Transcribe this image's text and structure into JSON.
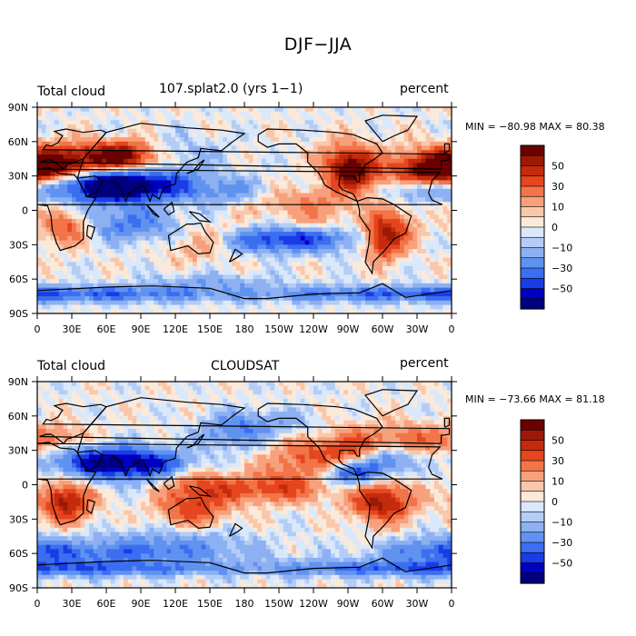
{
  "title": "DJF−JJA",
  "colors": {
    "levels_colors": [
      "#00007f",
      "#0000c0",
      "#1a3ce6",
      "#3b6ef0",
      "#6092f0",
      "#8cb0f2",
      "#b4cdf5",
      "#dae8fb",
      "#fbe9da",
      "#f9c7ab",
      "#f7a07c",
      "#f27449",
      "#e5461f",
      "#c42b0c",
      "#9c1a05",
      "#6b0000"
    ],
    "coast": "#000000"
  },
  "chart_data": [
    {
      "type": "heatmap",
      "name": "panel-model",
      "left_label": "Total cloud",
      "center_label": "107.splat2.0 (yrs 1−1)",
      "right_label": "percent",
      "stats_text": "MIN = −80.98 MAX =  80.38",
      "min": -80.98,
      "max": 80.38,
      "x_ticks": [
        "0",
        "30E",
        "60E",
        "90E",
        "120E",
        "150E",
        "180",
        "150W",
        "120W",
        "90W",
        "60W",
        "30W",
        "0"
      ],
      "y_ticks": [
        "90N",
        "60N",
        "30N",
        "0",
        "30S",
        "60S",
        "90S"
      ],
      "colorbar_labels": [
        "50",
        "30",
        "10",
        "0",
        "−10",
        "−30",
        "−50"
      ],
      "xlim": [
        0,
        360
      ],
      "ylim": [
        -90,
        90
      ],
      "levels": [
        -70,
        -60,
        -50,
        -40,
        -30,
        -20,
        -10,
        -5,
        0,
        5,
        10,
        20,
        30,
        40,
        50,
        60,
        70
      ]
    },
    {
      "type": "heatmap",
      "name": "panel-cloudsat",
      "left_label": "Total cloud",
      "center_label": "CLOUDSAT",
      "right_label": "percent",
      "stats_text": "MIN = −73.66 MAX =  81.18",
      "min": -73.66,
      "max": 81.18,
      "x_ticks": [
        "0",
        "30E",
        "60E",
        "90E",
        "120E",
        "150E",
        "180",
        "150W",
        "120W",
        "90W",
        "60W",
        "30W",
        "0"
      ],
      "y_ticks": [
        "90N",
        "60N",
        "30N",
        "0",
        "30S",
        "60S",
        "90S"
      ],
      "colorbar_labels": [
        "50",
        "30",
        "10",
        "0",
        "−10",
        "−30",
        "−50"
      ],
      "xlim": [
        0,
        360
      ],
      "ylim": [
        -90,
        90
      ],
      "levels": [
        -70,
        -60,
        -50,
        -40,
        -30,
        -20,
        -10,
        -5,
        0,
        5,
        10,
        20,
        30,
        40,
        50,
        60,
        70
      ]
    }
  ]
}
